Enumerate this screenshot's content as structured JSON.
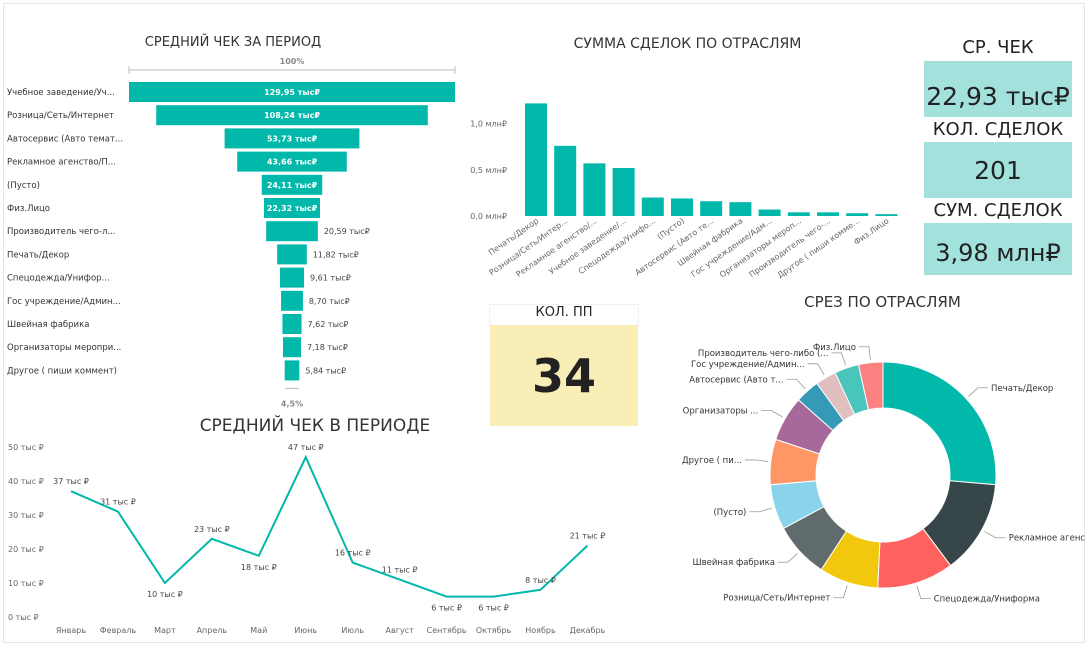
{
  "colors": {
    "teal": "#01b8aa",
    "card_bg": "#a3e2dc",
    "kpi_bg": "#faeeb7",
    "axis_text": "#666666"
  },
  "cards": {
    "avg_check_label": "СР. ЧЕК",
    "avg_check_value": "22,93 тыс₽",
    "deals_count_label": "КОЛ. СДЕЛОК",
    "deals_count_value": "201",
    "deals_sum_label": "СУМ. СДЕЛОК",
    "deals_sum_value": "3,98 млн₽",
    "pp_count_label": "КОЛ. ПП",
    "pp_count_value": "34"
  },
  "chart_data": [
    {
      "id": "funnel",
      "type": "bar",
      "orientation": "funnel",
      "title": "СРЕДНИЙ ЧЕК ЗА ПЕРИОД",
      "top_percent_label": "100%",
      "bottom_percent_label": "4,5%",
      "categories": [
        "Учебное заведение/Уч...",
        "Розница/Сеть/Интернет",
        "Автосервис (Авто темат...",
        "Рекламное агенство/П...",
        "(Пусто)",
        "Физ.Лицо",
        "Производитель чего-л...",
        "Печать/Декор",
        "Спецодежда/Унифор...",
        "Гос учреждение/Админ...",
        "Швейная фабрика",
        "Организаторы меропри...",
        "Другое ( пиши коммент)"
      ],
      "values": [
        129.95,
        108.24,
        53.73,
        43.66,
        24.11,
        22.32,
        20.59,
        11.82,
        9.61,
        8.7,
        7.62,
        7.18,
        5.84
      ],
      "value_labels": [
        "129,95 тыс₽",
        "108,24 тыс₽",
        "53,73 тыс₽",
        "43,66 тыс₽",
        "24,11 тыс₽",
        "22,32 тыс₽",
        "20,59 тыс₽",
        "11,82 тыс₽",
        "9,61 тыс₽",
        "8,70 тыс₽",
        "7,62 тыс₽",
        "7,18 тыс₽",
        "5,84 тыс₽"
      ],
      "unit": "тыс ₽"
    },
    {
      "id": "industry_sum",
      "type": "bar",
      "title": "СУММА СДЕЛОК ПО ОТРАСЛЯМ",
      "categories": [
        "Печать/Декор",
        "Розница/Сеть/Интер...",
        "Рекламное агенство/...",
        "Учебное заведение/...",
        "Спецодежда/Унифо...",
        "(Пусто)",
        "Автосервис (Авто те...",
        "Швейная фабрика",
        "Гос учреждение/Адм...",
        "Организаторы мероп...",
        "Производитель чего-...",
        "Другое ( пиши комме...",
        "Физ.Лицо"
      ],
      "values": [
        1.22,
        0.76,
        0.57,
        0.52,
        0.2,
        0.19,
        0.16,
        0.15,
        0.07,
        0.04,
        0.04,
        0.03,
        0.02
      ],
      "yticks": [
        0,
        0.5,
        1.0
      ],
      "ytick_labels": [
        "0,0 млн₽",
        "0,5 млн₽",
        "1,0 млн₽"
      ],
      "ylim": [
        0,
        1.3
      ],
      "unit": "млн ₽"
    },
    {
      "id": "monthly",
      "type": "line",
      "title": "СРЕДНИЙ ЧЕК В ПЕРИОДЕ",
      "categories": [
        "Январь",
        "Февраль",
        "Март",
        "Апрель",
        "Май",
        "Июнь",
        "Июль",
        "Август",
        "Сентябрь",
        "Октябрь",
        "Ноябрь",
        "Декабрь"
      ],
      "values": [
        37,
        31,
        10,
        23,
        18,
        47,
        16,
        11,
        6,
        6,
        8,
        21
      ],
      "value_labels": [
        "37 тыс ₽",
        "31 тыс ₽",
        "10 тыс ₽",
        "23 тыс ₽",
        "18 тыс ₽",
        "47 тыс ₽",
        "16 тыс ₽",
        "11 тыс ₽",
        "6 тыс ₽",
        "6 тыс ₽",
        "8 тыс ₽",
        "21 тыс ₽"
      ],
      "yticks": [
        0,
        10,
        20,
        30,
        40,
        50
      ],
      "ytick_labels": [
        "0 тыс ₽",
        "10 тыс ₽",
        "20 тыс ₽",
        "30 тыс ₽",
        "40 тыс ₽",
        "50 тыс ₽"
      ],
      "ylim": [
        0,
        50
      ],
      "unit": "тыс ₽"
    },
    {
      "id": "donut",
      "type": "pie",
      "donut": true,
      "title": "СРЕЗ ПО ОТРАСЛЯМ",
      "categories": [
        "Печать/Декор",
        "Рекламное агенс...",
        "Спецодежда/Униформа",
        "Розница/Сеть/Интернет",
        "Швейная фабрика",
        "(Пусто)",
        "Другое ( пи...",
        "Организаторы ...",
        "Автосервис (Авто т...",
        "Гос учреждение/Админ...",
        "Производитель чего-либо (...",
        "Физ.Лицо"
      ],
      "values": [
        26.5,
        13.5,
        11,
        8.5,
        8,
        6.5,
        6.5,
        6.5,
        3.5,
        3,
        3.5,
        3.5
      ],
      "colors": [
        "#01b8aa",
        "#374649",
        "#fd625e",
        "#f2c80f",
        "#5f6b6d",
        "#8ad4eb",
        "#fe9666",
        "#a66999",
        "#3599b8",
        "#dfbfbf",
        "#4ac5bb",
        "#fb8281"
      ],
      "unit": "%"
    }
  ]
}
